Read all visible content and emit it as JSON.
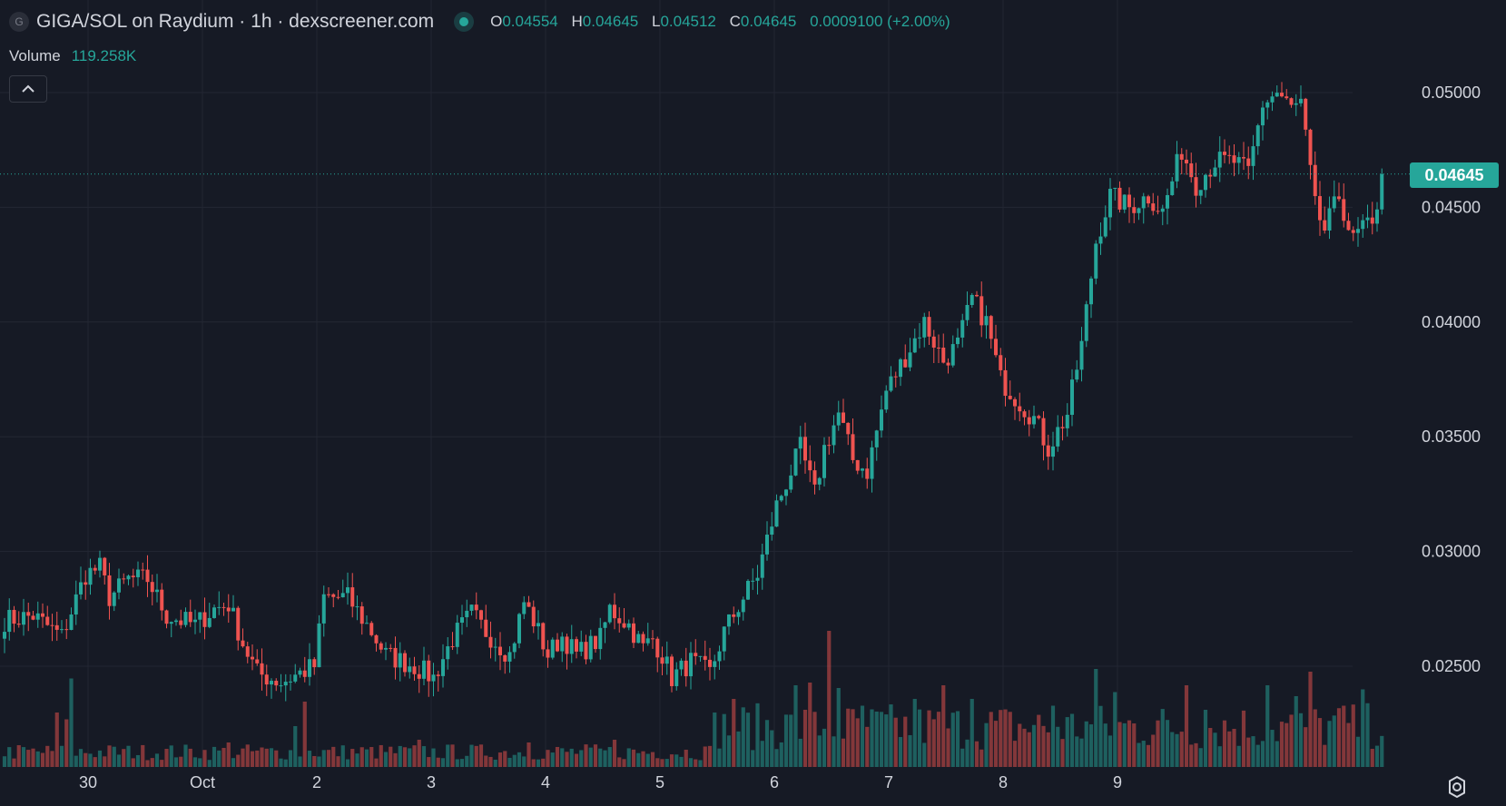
{
  "legend": {
    "logo_letter": "G",
    "title": "GIGA/SOL on Raydium · 1h · dexscreener.com",
    "open_label": "O",
    "open": "0.04554",
    "high_label": "H",
    "high": "0.04645",
    "low_label": "L",
    "low": "0.04512",
    "close_label": "C",
    "close": "0.04645",
    "change": "0.0009100 (+2.00%)"
  },
  "volume": {
    "label": "Volume",
    "value": "119.258K"
  },
  "last_price": "0.04645",
  "colors": {
    "up": "#26a69a",
    "down": "#ef5350",
    "background": "#161a25",
    "grid": "#232733"
  },
  "chart_data": {
    "type": "candlestick",
    "title": "GIGA/SOL on Raydium · 1h · dexscreener.com",
    "interval": "1h",
    "y_ticks": [
      "0.02500",
      "0.03000",
      "0.03500",
      "0.04000",
      "0.04500",
      "0.05000"
    ],
    "y_tick_values": [
      0.025,
      0.03,
      0.035,
      0.04,
      0.045,
      0.05
    ],
    "x_ticks": [
      "30",
      "Oct",
      "2",
      "3",
      "4",
      "5",
      "6",
      "7",
      "8",
      "9"
    ],
    "ylim": [
      0.0208,
      0.0535
    ],
    "bars_per_day": 24,
    "first_bar_offset_days": -0.73,
    "last_price": 0.04645,
    "close_path": [
      [
        0,
        0.027
      ],
      [
        6,
        0.0272
      ],
      [
        12,
        0.0263
      ],
      [
        17,
        0.029
      ],
      [
        20,
        0.0293
      ],
      [
        22,
        0.028
      ],
      [
        26,
        0.0288
      ],
      [
        30,
        0.0288
      ],
      [
        34,
        0.0272
      ],
      [
        40,
        0.0268
      ],
      [
        44,
        0.0275
      ],
      [
        47,
        0.0277
      ],
      [
        50,
        0.026
      ],
      [
        53,
        0.0247
      ],
      [
        58,
        0.0243
      ],
      [
        65,
        0.025
      ],
      [
        67,
        0.028
      ],
      [
        72,
        0.028
      ],
      [
        77,
        0.0265
      ],
      [
        80,
        0.0255
      ],
      [
        86,
        0.025
      ],
      [
        90,
        0.0245
      ],
      [
        94,
        0.0262
      ],
      [
        98,
        0.0273
      ],
      [
        101,
        0.0265
      ],
      [
        106,
        0.0255
      ],
      [
        109,
        0.0278
      ],
      [
        111,
        0.027
      ],
      [
        114,
        0.0255
      ],
      [
        117,
        0.0263
      ],
      [
        120,
        0.0255
      ],
      [
        125,
        0.0262
      ],
      [
        127,
        0.0275
      ],
      [
        131,
        0.0268
      ],
      [
        134,
        0.0258
      ],
      [
        136,
        0.0262
      ],
      [
        138,
        0.0255
      ],
      [
        140,
        0.0245
      ],
      [
        144,
        0.0252
      ],
      [
        148,
        0.0247
      ],
      [
        151,
        0.0265
      ],
      [
        155,
        0.028
      ],
      [
        158,
        0.029
      ],
      [
        162,
        0.032
      ],
      [
        167,
        0.0345
      ],
      [
        170,
        0.0325
      ],
      [
        172,
        0.0345
      ],
      [
        175,
        0.036
      ],
      [
        178,
        0.034
      ],
      [
        181,
        0.0335
      ],
      [
        185,
        0.037
      ],
      [
        189,
        0.0385
      ],
      [
        193,
        0.04
      ],
      [
        197,
        0.0383
      ],
      [
        200,
        0.039
      ],
      [
        203,
        0.041
      ],
      [
        206,
        0.04
      ],
      [
        209,
        0.0375
      ],
      [
        213,
        0.0365
      ],
      [
        216,
        0.0358
      ],
      [
        219,
        0.0345
      ],
      [
        223,
        0.036
      ],
      [
        226,
        0.039
      ],
      [
        229,
        0.0435
      ],
      [
        232,
        0.0455
      ],
      [
        236,
        0.045
      ],
      [
        240,
        0.0455
      ],
      [
        243,
        0.0448
      ],
      [
        247,
        0.0475
      ],
      [
        250,
        0.046
      ],
      [
        254,
        0.047
      ],
      [
        258,
        0.047
      ],
      [
        261,
        0.0465
      ],
      [
        264,
        0.0495
      ],
      [
        267,
        0.05
      ],
      [
        270,
        0.0493
      ],
      [
        272,
        0.0495
      ],
      [
        275,
        0.045
      ],
      [
        277,
        0.044
      ],
      [
        280,
        0.0455
      ],
      [
        283,
        0.0435
      ],
      [
        285,
        0.0442
      ],
      [
        287,
        0.044
      ],
      [
        289,
        0.0464
      ]
    ],
    "volume": {
      "label": "Volume",
      "last": "119.258K",
      "spikes": [
        [
          11,
          0.4
        ],
        [
          14,
          0.65
        ],
        [
          13,
          0.35
        ],
        [
          47,
          0.18
        ],
        [
          61,
          0.3
        ],
        [
          63,
          0.48
        ],
        [
          87,
          0.2
        ],
        [
          110,
          0.18
        ],
        [
          128,
          0.2
        ],
        [
          149,
          0.4
        ],
        [
          153,
          0.5
        ],
        [
          166,
          0.6
        ],
        [
          169,
          0.62
        ],
        [
          173,
          1.0
        ],
        [
          175,
          0.58
        ],
        [
          180,
          0.45
        ],
        [
          191,
          0.5
        ],
        [
          197,
          0.6
        ],
        [
          203,
          0.5
        ],
        [
          220,
          0.45
        ],
        [
          229,
          0.72
        ],
        [
          233,
          0.55
        ],
        [
          248,
          0.6
        ],
        [
          252,
          0.42
        ],
        [
          265,
          0.6
        ],
        [
          271,
          0.52
        ],
        [
          274,
          0.7
        ],
        [
          281,
          0.45
        ],
        [
          285,
          0.57
        ]
      ]
    }
  }
}
